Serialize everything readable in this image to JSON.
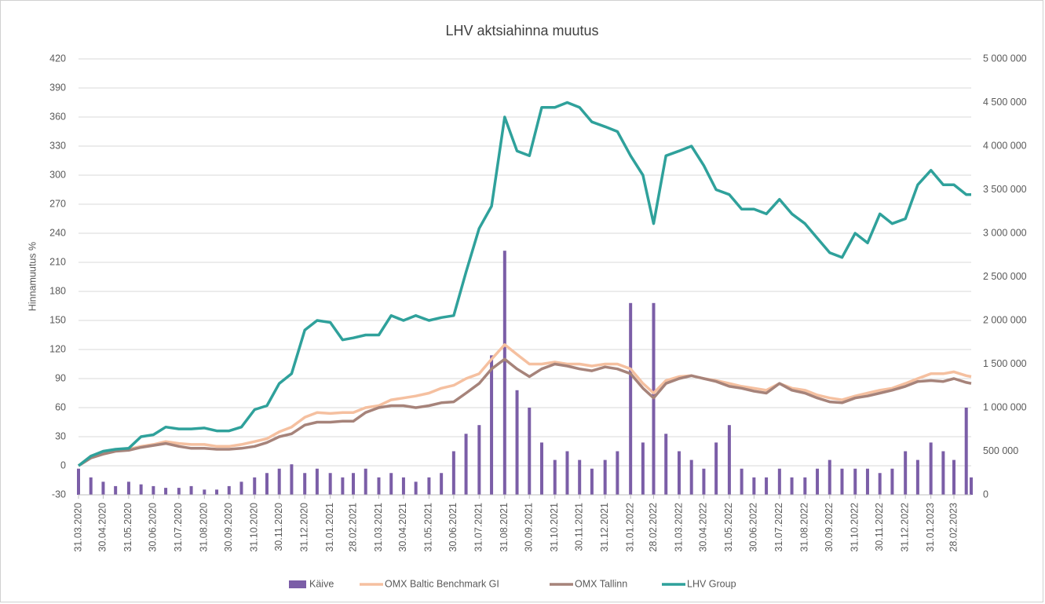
{
  "chart_data": {
    "type": "line",
    "title": "LHV aktsiahinna muutus",
    "ylabel": "Hinnamuutus %",
    "x": [
      "31.03.2020",
      "15.04.2020",
      "30.04.2020",
      "15.05.2020",
      "31.05.2020",
      "15.06.2020",
      "30.06.2020",
      "15.07.2020",
      "31.07.2020",
      "15.08.2020",
      "31.08.2020",
      "15.09.2020",
      "30.09.2020",
      "15.10.2020",
      "31.10.2020",
      "15.11.2020",
      "30.11.2020",
      "15.12.2020",
      "31.12.2020",
      "15.01.2021",
      "31.01.2021",
      "15.02.2021",
      "28.02.2021",
      "15.03.2021",
      "31.03.2021",
      "15.04.2021",
      "30.04.2021",
      "15.05.2021",
      "31.05.2021",
      "15.06.2021",
      "30.06.2021",
      "15.07.2021",
      "31.07.2021",
      "15.08.2021",
      "31.08.2021",
      "15.09.2021",
      "30.09.2021",
      "15.10.2021",
      "31.10.2021",
      "15.11.2021",
      "30.11.2021",
      "15.12.2021",
      "31.12.2021",
      "15.01.2022",
      "31.01.2022",
      "15.02.2022",
      "28.02.2022",
      "15.03.2022",
      "31.03.2022",
      "15.04.2022",
      "30.04.2022",
      "15.05.2022",
      "31.05.2022",
      "15.06.2022",
      "30.06.2022",
      "15.07.2022",
      "31.07.2022",
      "15.08.2022",
      "31.08.2022",
      "15.09.2022",
      "30.09.2022",
      "15.10.2022",
      "31.10.2022",
      "15.11.2022",
      "30.11.2022",
      "15.12.2022",
      "31.12.2022",
      "15.01.2023",
      "31.01.2023",
      "15.02.2023",
      "28.02.2023",
      "15.03.2023",
      "21.03.2023"
    ],
    "series": [
      {
        "name": "Käive",
        "type": "bar",
        "axis": "y2",
        "color": "#7b5ea7",
        "values": [
          300000,
          200000,
          150000,
          100000,
          150000,
          120000,
          100000,
          80000,
          80000,
          100000,
          60000,
          60000,
          100000,
          150000,
          200000,
          250000,
          300000,
          350000,
          250000,
          300000,
          250000,
          200000,
          250000,
          300000,
          200000,
          250000,
          200000,
          150000,
          200000,
          250000,
          500000,
          700000,
          800000,
          1600000,
          2800000,
          1200000,
          1000000,
          600000,
          400000,
          500000,
          400000,
          300000,
          400000,
          500000,
          2200000,
          600000,
          2200000,
          700000,
          500000,
          400000,
          300000,
          600000,
          800000,
          300000,
          200000,
          200000,
          300000,
          200000,
          200000,
          300000,
          400000,
          300000,
          300000,
          300000,
          250000,
          300000,
          500000,
          400000,
          600000,
          500000,
          400000,
          1000000,
          200000
        ]
      },
      {
        "name": "OMX Baltic Benchmark GI",
        "color": "#f5c0a0",
        "values": [
          0,
          10,
          14,
          16,
          17,
          20,
          22,
          25,
          23,
          22,
          22,
          20,
          20,
          22,
          25,
          28,
          35,
          40,
          50,
          55,
          54,
          55,
          55,
          60,
          62,
          68,
          70,
          72,
          75,
          80,
          83,
          90,
          95,
          110,
          125,
          115,
          105,
          105,
          107,
          105,
          105,
          103,
          105,
          105,
          100,
          85,
          75,
          88,
          92,
          93,
          90,
          88,
          85,
          82,
          80,
          78,
          85,
          80,
          78,
          73,
          70,
          68,
          72,
          75,
          78,
          80,
          85,
          90,
          95,
          95,
          97,
          93,
          92
        ]
      },
      {
        "name": "OMX Tallinn",
        "color": "#a6837a",
        "values": [
          0,
          8,
          12,
          15,
          16,
          19,
          21,
          23,
          20,
          18,
          18,
          17,
          17,
          18,
          20,
          24,
          30,
          33,
          42,
          45,
          45,
          46,
          46,
          55,
          60,
          62,
          62,
          60,
          62,
          65,
          66,
          75,
          85,
          100,
          110,
          100,
          92,
          100,
          105,
          103,
          100,
          98,
          102,
          100,
          95,
          80,
          70,
          85,
          90,
          93,
          90,
          87,
          82,
          80,
          77,
          75,
          85,
          78,
          75,
          70,
          66,
          65,
          70,
          72,
          75,
          78,
          82,
          87,
          88,
          87,
          90,
          86,
          85
        ]
      },
      {
        "name": "LHV Group",
        "color": "#2fa19b",
        "values": [
          0,
          10,
          15,
          17,
          18,
          30,
          32,
          40,
          38,
          38,
          39,
          36,
          36,
          40,
          58,
          62,
          85,
          95,
          140,
          150,
          148,
          130,
          132,
          135,
          135,
          155,
          150,
          155,
          150,
          153,
          155,
          200,
          245,
          268,
          360,
          325,
          320,
          370,
          370,
          375,
          370,
          355,
          350,
          345,
          320,
          300,
          250,
          320,
          325,
          330,
          310,
          285,
          280,
          265,
          265,
          260,
          275,
          260,
          250,
          235,
          220,
          215,
          240,
          230,
          260,
          250,
          255,
          290,
          305,
          290,
          290,
          280,
          280
        ]
      }
    ],
    "xlim": [
      "31.03.2020",
      "21.03.2023"
    ],
    "xticks": [
      "31.03.2020",
      "30.04.2020",
      "31.05.2020",
      "30.06.2020",
      "31.07.2020",
      "31.08.2020",
      "30.09.2020",
      "31.10.2020",
      "30.11.2020",
      "31.12.2020",
      "31.01.2021",
      "28.02.2021",
      "31.03.2021",
      "30.04.2021",
      "31.05.2021",
      "30.06.2021",
      "31.07.2021",
      "31.08.2021",
      "30.09.2021",
      "31.10.2021",
      "30.11.2021",
      "31.12.2021",
      "31.01.2022",
      "28.02.2022",
      "31.03.2022",
      "30.04.2022",
      "31.05.2022",
      "30.06.2022",
      "31.07.2022",
      "31.08.2022",
      "30.09.2022",
      "31.10.2022",
      "30.11.2022",
      "31.12.2022",
      "31.01.2023",
      "28.02.2023"
    ],
    "ylim": [
      -30,
      420
    ],
    "yticks": [
      -30,
      0,
      30,
      60,
      90,
      120,
      150,
      180,
      210,
      240,
      270,
      300,
      330,
      360,
      390,
      420
    ],
    "y2lim": [
      0,
      5000000
    ],
    "y2ticks": [
      {
        "value": 0,
        "label": "0"
      },
      {
        "value": 500000,
        "label": "500 000"
      },
      {
        "value": 1000000,
        "label": "1 000 000"
      },
      {
        "value": 1500000,
        "label": "1 500 000"
      },
      {
        "value": 2000000,
        "label": "2 000 000"
      },
      {
        "value": 2500000,
        "label": "2 500 000"
      },
      {
        "value": 3000000,
        "label": "3 000 000"
      },
      {
        "value": 3500000,
        "label": "3 500 000"
      },
      {
        "value": 4000000,
        "label": "4 000 000"
      },
      {
        "value": 4500000,
        "label": "4 500 000"
      },
      {
        "value": 5000000,
        "label": "5 000 000"
      }
    ],
    "grid": true,
    "legend": "bottom"
  }
}
